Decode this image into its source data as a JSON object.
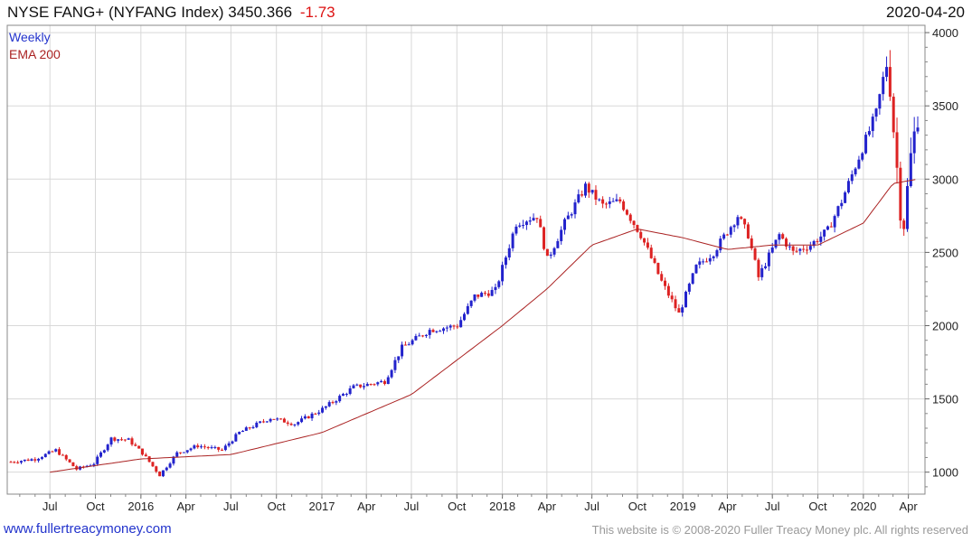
{
  "header": {
    "title": "NYSE FANG+ (NYFANG Index)",
    "last": "3450.366",
    "change": "-1.73",
    "date": "2020-04-20"
  },
  "legend": {
    "period": "Weekly",
    "indicator": "EMA 200"
  },
  "footer": {
    "site": "www.fullertreacymoney.com",
    "copyright": "This website is © 2008-2020 Fuller Treacy Money plc. All rights reserved"
  },
  "colors": {
    "up": "#2222cc",
    "down": "#dd2222",
    "ema": "#aa2222",
    "grid": "#d8d8d8"
  },
  "chart_data": {
    "type": "line",
    "series_kind": "weekly candlestick with EMA overlay",
    "title": "NYSE FANG+ (NYFANG Index)",
    "ylim": [
      850,
      4050
    ],
    "yticks": [
      1000,
      1500,
      2000,
      2500,
      3000,
      3500,
      4000
    ],
    "y_scale": "linear",
    "grid": true,
    "axis_position": "right",
    "xrange": [
      "2015-04-13",
      "2020-04-20"
    ],
    "xticks": [
      {
        "date": "2015-07-01",
        "label": "Jul"
      },
      {
        "date": "2015-10-01",
        "label": "Oct"
      },
      {
        "date": "2016-01-01",
        "label": "2016"
      },
      {
        "date": "2016-04-01",
        "label": "Apr"
      },
      {
        "date": "2016-07-01",
        "label": "Jul"
      },
      {
        "date": "2016-10-01",
        "label": "Oct"
      },
      {
        "date": "2017-01-01",
        "label": "2017"
      },
      {
        "date": "2017-04-01",
        "label": "Apr"
      },
      {
        "date": "2017-07-01",
        "label": "Jul"
      },
      {
        "date": "2017-10-01",
        "label": "Oct"
      },
      {
        "date": "2018-01-01",
        "label": "2018"
      },
      {
        "date": "2018-04-01",
        "label": "Apr"
      },
      {
        "date": "2018-07-01",
        "label": "Jul"
      },
      {
        "date": "2018-10-01",
        "label": "Oct"
      },
      {
        "date": "2019-01-01",
        "label": "2019"
      },
      {
        "date": "2019-04-01",
        "label": "Apr"
      },
      {
        "date": "2019-07-01",
        "label": "Jul"
      },
      {
        "date": "2019-10-01",
        "label": "Oct"
      },
      {
        "date": "2020-01-01",
        "label": "2020"
      },
      {
        "date": "2020-04-01",
        "label": "Apr"
      }
    ],
    "price_anchors": [
      [
        "2015-04-13",
        1070
      ],
      [
        "2015-06-01",
        1090
      ],
      [
        "2015-07-13",
        1150
      ],
      [
        "2015-08-24",
        1020
      ],
      [
        "2015-09-28",
        1060
      ],
      [
        "2015-11-02",
        1230
      ],
      [
        "2015-12-07",
        1220
      ],
      [
        "2016-01-04",
        1130
      ],
      [
        "2016-02-08",
        980
      ],
      [
        "2016-03-14",
        1130
      ],
      [
        "2016-04-25",
        1180
      ],
      [
        "2016-06-13",
        1150
      ],
      [
        "2016-07-18",
        1270
      ],
      [
        "2016-09-19",
        1370
      ],
      [
        "2016-11-07",
        1330
      ],
      [
        "2017-01-02",
        1430
      ],
      [
        "2017-03-06",
        1580
      ],
      [
        "2017-05-08",
        1620
      ],
      [
        "2017-06-12",
        1850
      ],
      [
        "2017-08-07",
        1970
      ],
      [
        "2017-10-02",
        2000
      ],
      [
        "2017-11-06",
        2200
      ],
      [
        "2017-12-18",
        2240
      ],
      [
        "2018-01-29",
        2700
      ],
      [
        "2018-03-12",
        2750
      ],
      [
        "2018-04-02",
        2450
      ],
      [
        "2018-05-07",
        2700
      ],
      [
        "2018-06-18",
        2950
      ],
      [
        "2018-07-23",
        2820
      ],
      [
        "2018-08-27",
        2850
      ],
      [
        "2018-10-08",
        2620
      ],
      [
        "2018-11-19",
        2300
      ],
      [
        "2018-12-24",
        2080
      ],
      [
        "2019-01-28",
        2400
      ],
      [
        "2019-03-04",
        2500
      ],
      [
        "2019-04-22",
        2750
      ],
      [
        "2019-05-13",
        2620
      ],
      [
        "2019-06-03",
        2330
      ],
      [
        "2019-07-15",
        2620
      ],
      [
        "2019-08-12",
        2500
      ],
      [
        "2019-09-16",
        2550
      ],
      [
        "2019-10-21",
        2650
      ],
      [
        "2019-11-18",
        2850
      ],
      [
        "2019-12-23",
        3150
      ],
      [
        "2020-01-27",
        3450
      ],
      [
        "2020-02-17",
        3800
      ],
      [
        "2020-02-24",
        3650
      ],
      [
        "2020-03-02",
        3350
      ],
      [
        "2020-03-16",
        2800
      ],
      [
        "2020-03-23",
        2700
      ],
      [
        "2020-04-06",
        3150
      ],
      [
        "2020-04-20",
        3450
      ]
    ],
    "ema_anchors": [
      [
        "2015-07-01",
        1000
      ],
      [
        "2016-01-01",
        1090
      ],
      [
        "2016-07-01",
        1120
      ],
      [
        "2017-01-01",
        1270
      ],
      [
        "2017-07-01",
        1530
      ],
      [
        "2018-01-01",
        2000
      ],
      [
        "2018-04-01",
        2250
      ],
      [
        "2018-07-01",
        2550
      ],
      [
        "2018-10-01",
        2660
      ],
      [
        "2019-01-01",
        2600
      ],
      [
        "2019-04-01",
        2520
      ],
      [
        "2019-07-01",
        2550
      ],
      [
        "2019-10-01",
        2550
      ],
      [
        "2020-01-01",
        2700
      ],
      [
        "2020-03-01",
        2970
      ],
      [
        "2020-04-20",
        3000
      ]
    ]
  }
}
